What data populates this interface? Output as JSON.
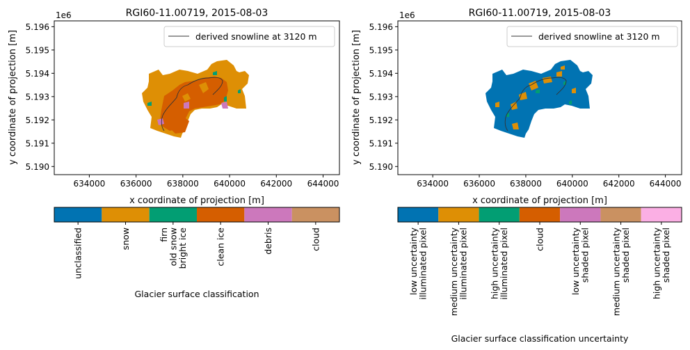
{
  "chart_data": [
    {
      "type": "heatmap",
      "title": "RGI60-11.00719, 2015-08-03",
      "xlabel": "x coordinate of projection [m]",
      "ylabel": "y coordinate of projection [m]",
      "y_offset_label": "1e6",
      "xlim": [
        632500,
        644700
      ],
      "ylim": [
        5.18965,
        5.19625
      ],
      "xticks": [
        634000,
        636000,
        638000,
        640000,
        642000,
        644000
      ],
      "xtick_labels": [
        "634000",
        "636000",
        "638000",
        "640000",
        "642000",
        "644000"
      ],
      "yticks": [
        5.19,
        5.191,
        5.192,
        5.193,
        5.194,
        5.195,
        5.196
      ],
      "ytick_labels": [
        "5.190",
        "5.191",
        "5.192",
        "5.193",
        "5.194",
        "5.195",
        "5.196"
      ],
      "legend": {
        "label": "derived snowline at 3120 m",
        "placement": "top-right"
      },
      "colorbar": {
        "label": "Glacier surface classification",
        "categories": [
          "unclassified",
          "snow",
          "firn\nold snow\nbright ice",
          "clean ice",
          "debris",
          "cloud"
        ],
        "colors": [
          "#0173b2",
          "#de8f05",
          "#029e73",
          "#d55e00",
          "#cc78bc",
          "#ca9161"
        ]
      }
    },
    {
      "type": "heatmap",
      "title": "RGI60-11.00719, 2015-08-03",
      "xlabel": "x coordinate of projection [m]",
      "ylabel": "y coordinate of projection [m]",
      "y_offset_label": "1e6",
      "xlim": [
        632500,
        644700
      ],
      "ylim": [
        5.18965,
        5.19625
      ],
      "xticks": [
        634000,
        636000,
        638000,
        640000,
        642000,
        644000
      ],
      "xtick_labels": [
        "634000",
        "636000",
        "638000",
        "640000",
        "642000",
        "644000"
      ],
      "yticks": [
        5.19,
        5.191,
        5.192,
        5.193,
        5.194,
        5.195,
        5.196
      ],
      "ytick_labels": [
        "5.190",
        "5.191",
        "5.192",
        "5.193",
        "5.194",
        "5.195",
        "5.196"
      ],
      "legend": {
        "label": "derived snowline at 3120 m",
        "placement": "top-right"
      },
      "colorbar": {
        "label": "Glacier surface classification uncertainty",
        "categories": [
          "low uncertainty\nilluminated pixel",
          "medium uncertainty\nilluminated pixel",
          "high uncertainty\nilluminated pixel",
          "cloud",
          "low uncertainty\nshaded pixel",
          "medium uncertainty\nshaded pixel",
          "high uncertainty\nshaded pixel"
        ],
        "colors": [
          "#0173b2",
          "#de8f05",
          "#029e73",
          "#d55e00",
          "#cc78bc",
          "#ca9161",
          "#fbafe4"
        ]
      }
    }
  ]
}
